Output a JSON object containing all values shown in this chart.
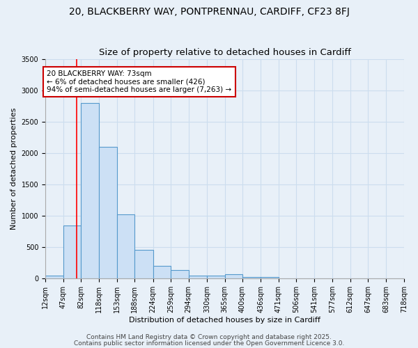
{
  "title1": "20, BLACKBERRY WAY, PONTPRENNAU, CARDIFF, CF23 8FJ",
  "title2": "Size of property relative to detached houses in Cardiff",
  "xlabel": "Distribution of detached houses by size in Cardiff",
  "ylabel": "Number of detached properties",
  "bin_edges": [
    12,
    47,
    82,
    118,
    153,
    188,
    224,
    259,
    294,
    330,
    365,
    400,
    436,
    471,
    506,
    541,
    577,
    612,
    647,
    683,
    718
  ],
  "bar_heights": [
    50,
    850,
    2800,
    2100,
    1020,
    460,
    200,
    140,
    50,
    50,
    70,
    30,
    20,
    5,
    2,
    2,
    2,
    2,
    2,
    0
  ],
  "bar_color": "#cce0f5",
  "bar_edge_color": "#5599cc",
  "grid_color": "#ccddee",
  "background_color": "#e8f0f8",
  "red_line_x": 73,
  "annotation_title": "20 BLACKBERRY WAY: 73sqm",
  "annotation_line1": "← 6% of detached houses are smaller (426)",
  "annotation_line2": "94% of semi-detached houses are larger (7,263) →",
  "annotation_box_color": "#ffffff",
  "annotation_border_color": "#cc0000",
  "ylim": [
    0,
    3500
  ],
  "yticks": [
    0,
    500,
    1000,
    1500,
    2000,
    2500,
    3000,
    3500
  ],
  "footer1": "Contains HM Land Registry data © Crown copyright and database right 2025.",
  "footer2": "Contains public sector information licensed under the Open Government Licence 3.0.",
  "title1_fontsize": 10,
  "title2_fontsize": 9.5,
  "axis_label_fontsize": 8,
  "tick_fontsize": 7,
  "annotation_fontsize": 7.5,
  "footer_fontsize": 6.5
}
